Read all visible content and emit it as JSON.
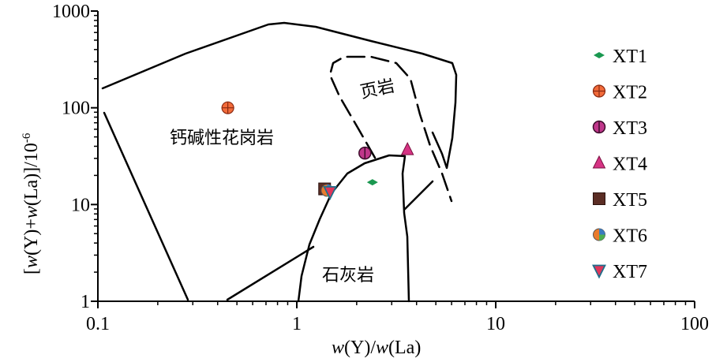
{
  "chart_data": {
    "type": "scatter",
    "xscale": "log",
    "yscale": "log",
    "xlim": [
      0.1,
      100
    ],
    "ylim": [
      1,
      1000
    ],
    "x_ticks": [
      "0.1",
      "1",
      "10",
      "100"
    ],
    "y_ticks": [
      "1",
      "10",
      "100",
      "1000"
    ],
    "xlabel": {
      "a": "w",
      "b": "(Y)/",
      "c": "w",
      "d": "(La)"
    },
    "ylabel": {
      "a": "[",
      "b": "w",
      "c": "(Y)+",
      "d": "w",
      "e": "(La)]/10",
      "f": "-6"
    },
    "region_labels": {
      "granite": "钙碱性花岗岩",
      "shale": "页岩",
      "limestone": "石灰岩"
    },
    "legend_position": "right",
    "series": [
      {
        "name": "XT1",
        "marker": "diamond",
        "color": "#1a9850",
        "x": 2.4,
        "y": 17
      },
      {
        "name": "XT2",
        "marker": "circle-plus",
        "color": "#f26b3a",
        "x": 0.45,
        "y": 100
      },
      {
        "name": "XT3",
        "marker": "circle-line",
        "color": "#c0378b",
        "x": 2.2,
        "y": 34
      },
      {
        "name": "XT4",
        "marker": "triangle-up",
        "color": "#d63384",
        "x": 3.6,
        "y": 37
      },
      {
        "name": "XT5",
        "marker": "square",
        "color": "#5b2d24",
        "x": 1.38,
        "y": 14.5
      },
      {
        "name": "XT6",
        "marker": "circle-multi",
        "color": "#e97b2c",
        "x": 1.42,
        "y": 14
      },
      {
        "name": "XT7",
        "marker": "triangle-down",
        "color": "#e0365a",
        "x": 1.47,
        "y": 13.5
      }
    ]
  }
}
